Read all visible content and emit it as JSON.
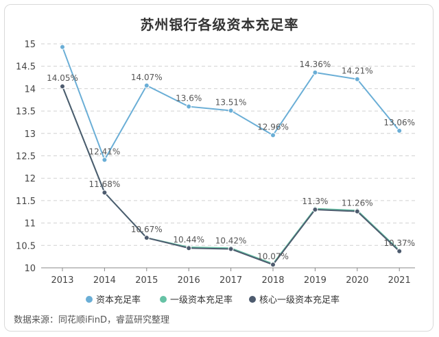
{
  "chart_data": {
    "type": "line",
    "title": "苏州银行各级资本充足率",
    "x": [
      "2013",
      "2014",
      "2015",
      "2016",
      "2017",
      "2018",
      "2019",
      "2020",
      "2021"
    ],
    "ylim": [
      10,
      15
    ],
    "yticks": [
      "10",
      "10.5",
      "11",
      "11.5",
      "12",
      "12.5",
      "13",
      "13.5",
      "14",
      "14.5",
      "15"
    ],
    "grid": true,
    "legend_position": "bottom",
    "series": [
      {
        "name": "资本充足率",
        "color": "#6aaed6",
        "values": [
          14.93,
          12.41,
          14.07,
          13.6,
          13.51,
          12.96,
          14.36,
          14.21,
          13.06
        ],
        "labels": [
          "",
          "12.41%",
          "14.07%",
          "13.6%",
          "13.51%",
          "12.96%",
          "14.36%",
          "14.21%",
          "13.06%"
        ]
      },
      {
        "name": "一级资本充足率",
        "color": "#66c2a5",
        "values": [
          14.05,
          11.68,
          10.67,
          10.46,
          10.44,
          10.09,
          11.32,
          11.28,
          10.39
        ],
        "labels": [
          "",
          "",
          "",
          "",
          "",
          "",
          "",
          "",
          ""
        ]
      },
      {
        "name": "核心一级资本充足率",
        "color": "#4d5b6e",
        "values": [
          14.05,
          11.68,
          10.67,
          10.44,
          10.42,
          10.07,
          11.3,
          11.26,
          10.37
        ],
        "labels": [
          "14.05%",
          "11.68%",
          "10.67%",
          "10.44%",
          "10.42%",
          "10.07%",
          "11.3%",
          "11.26%",
          "10.37%"
        ]
      }
    ]
  },
  "source": "数据来源：同花顺iFinD，睿蓝研究整理"
}
